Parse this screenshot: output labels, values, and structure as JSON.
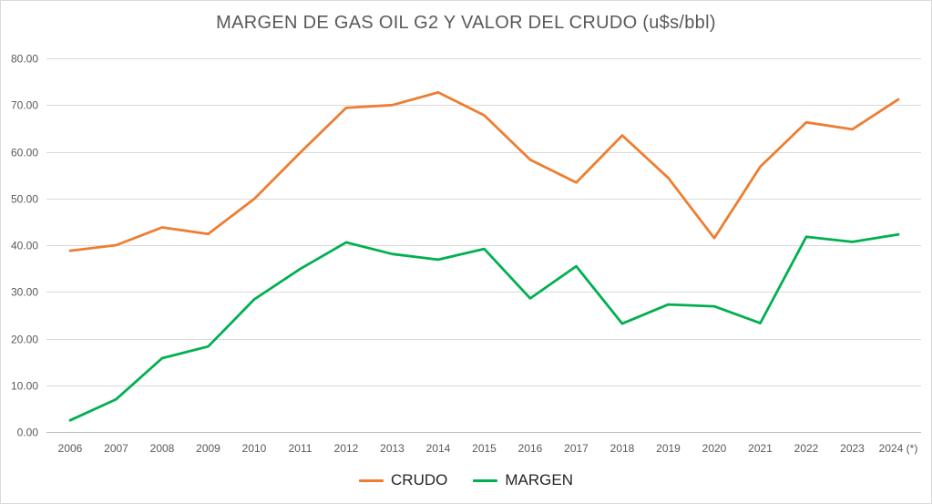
{
  "chart_data": {
    "type": "line",
    "title": "MARGEN DE GAS OIL G2 Y VALOR DEL CRUDO (u$s/bbl)",
    "categories": [
      "2006",
      "2007",
      "2008",
      "2009",
      "2010",
      "2011",
      "2012",
      "2013",
      "2014",
      "2015",
      "2016",
      "2017",
      "2018",
      "2019",
      "2020",
      "2021",
      "2022",
      "2023",
      "2024 (*)"
    ],
    "series": [
      {
        "name": "CRUDO",
        "color": "#ED7D31",
        "values": [
          38.8,
          40.0,
          43.8,
          42.4,
          49.9,
          59.8,
          69.4,
          70.0,
          72.7,
          67.8,
          58.3,
          53.4,
          63.5,
          54.4,
          41.5,
          56.8,
          66.3,
          64.8,
          71.2
        ]
      },
      {
        "name": "MARGEN",
        "color": "#00B050",
        "values": [
          2.5,
          7.0,
          15.8,
          18.3,
          28.4,
          34.9,
          40.6,
          38.1,
          36.9,
          39.2,
          28.6,
          35.5,
          23.2,
          27.3,
          26.9,
          23.3,
          41.8,
          40.7,
          42.3
        ]
      }
    ],
    "ylim": [
      0,
      80
    ],
    "ytick_step": 10,
    "ytick_labels": [
      "0.00",
      "10.00",
      "20.00",
      "30.00",
      "40.00",
      "50.00",
      "60.00",
      "70.00",
      "80.00"
    ],
    "grid": true,
    "legend_position": "bottom",
    "colors": {
      "grid": "#D9D9D9",
      "axis_line": "#BFBFBF",
      "axis_text": "#595959",
      "title_text": "#595959",
      "legend_text": "#262626",
      "background": "#FFFFFF",
      "border": "#D9D9D9"
    }
  }
}
